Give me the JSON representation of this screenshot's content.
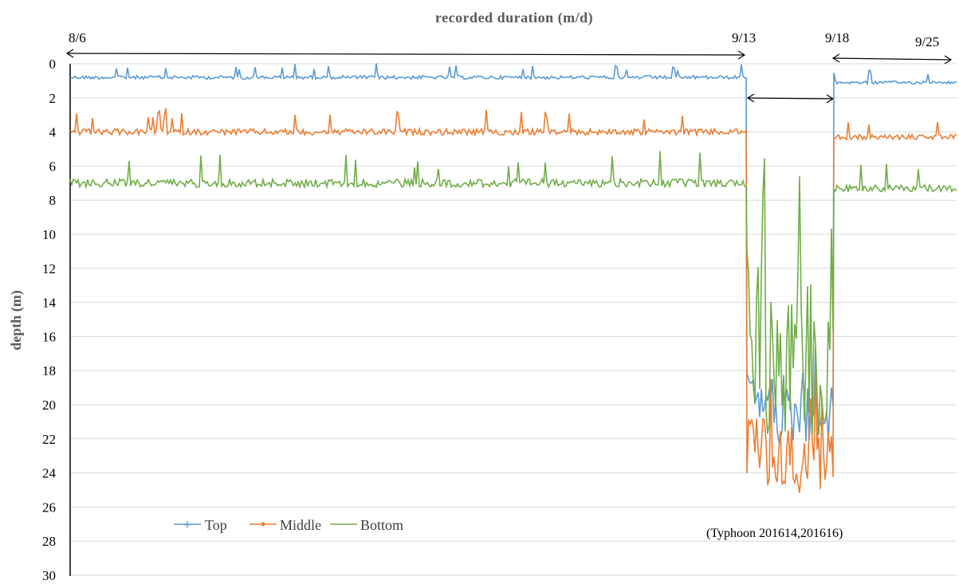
{
  "chart_data": {
    "type": "line",
    "title": "recorded duration (m/d)",
    "xlabel": "recorded duration (m/d)",
    "ylabel": "depth (m)",
    "ylim": [
      0,
      30
    ],
    "y_inverted": true,
    "y_ticks": [
      "0",
      "2",
      "4",
      "6",
      "8",
      "10",
      "12",
      "14",
      "16",
      "18",
      "20",
      "22",
      "24",
      "26",
      "28",
      "30"
    ],
    "x_period_labels": [
      "8/6",
      "9/13",
      "9/18",
      "9/25"
    ],
    "x_range_days": [
      "8/6",
      "9/26"
    ],
    "grid": "horizontal",
    "legend_position": "bottom-left",
    "annotation": "(Typhoon 201614,201616)",
    "series": [
      {
        "name": "Top",
        "color": "#5b9bd5",
        "marker": "+",
        "baseline_before": 0.8,
        "baseline_after": 1.1,
        "typhoon_range": [
          16,
          23
        ]
      },
      {
        "name": "Middle",
        "color": "#ed7d31",
        "marker": "•",
        "baseline_before": 4.0,
        "baseline_after": 4.3,
        "typhoon_range": [
          18,
          26
        ]
      },
      {
        "name": "Bottom",
        "color": "#70ad47",
        "marker": "",
        "baseline_before": 7.0,
        "baseline_after": 7.3,
        "typhoon_range": [
          5,
          24
        ]
      }
    ]
  }
}
